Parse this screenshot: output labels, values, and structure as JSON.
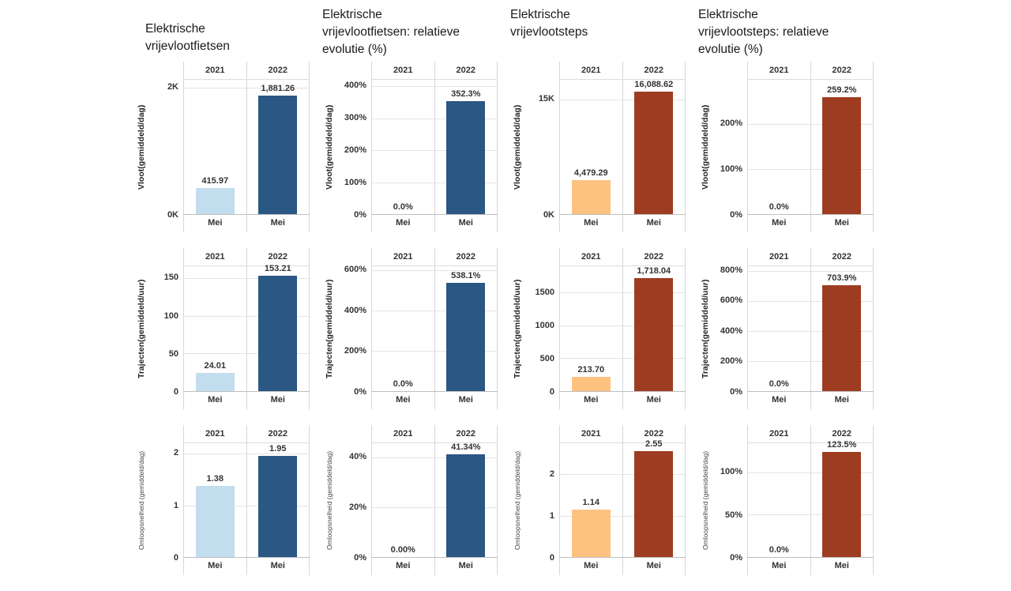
{
  "page": {
    "background": "#ffffff"
  },
  "palette": {
    "bike_2021": "#c1ddee",
    "bike_2022": "#2a5783",
    "step_2021": "#fdc280",
    "step_2022": "#9d3c21",
    "grid_line": "#e4e4e4",
    "pane_border": "#d7d7d7",
    "text": "#333333"
  },
  "columns": [
    {
      "title": "Elektrische vrijevlootfietsen"
    },
    {
      "title": "Elektrische vrijevlootfietsen: relatieve evolutie (%)"
    },
    {
      "title": "Elektrische vrijevlootsteps"
    },
    {
      "title": "Elektrische vrijevlootsteps: relatieve evolutie (%)"
    }
  ],
  "chart_data": [
    {
      "id": "fietsen-vloot",
      "type": "bar",
      "row": 1,
      "col": 1,
      "title": "Elektrische vrijevlootfietsen",
      "ylabel": "Vloot(gemiddeld/dag)",
      "ylabel_style": "bold",
      "column_headers": [
        "2021",
        "2022"
      ],
      "categories": [
        "Mei",
        "Mei"
      ],
      "values": [
        415.97,
        1881.26
      ],
      "value_labels": [
        "415.97",
        "1,881.26"
      ],
      "colors": [
        "#c1ddee",
        "#2a5783"
      ],
      "yticks": [
        {
          "value": 0,
          "label": "0K"
        },
        {
          "value": 2000,
          "label": "2K"
        }
      ],
      "ymax": 2130,
      "grid": true,
      "legend": "none"
    },
    {
      "id": "fietsen-vloot-relatief",
      "type": "bar",
      "row": 1,
      "col": 2,
      "title": "Elektrische vrijevlootfietsen: relatieve evolutie (%)",
      "ylabel": "Vloot(gemiddeld/dag)",
      "ylabel_style": "bold",
      "column_headers": [
        "2021",
        "2022"
      ],
      "categories": [
        "Mei",
        "Mei"
      ],
      "values": [
        0,
        352.3
      ],
      "value_labels": [
        "0.0%",
        "352.3%"
      ],
      "colors": [
        "#2a5783",
        "#2a5783"
      ],
      "yticks": [
        {
          "value": 0,
          "label": "0%"
        },
        {
          "value": 100,
          "label": "100%"
        },
        {
          "value": 200,
          "label": "200%"
        },
        {
          "value": 300,
          "label": "300%"
        },
        {
          "value": 400,
          "label": "400%"
        }
      ],
      "ymax": 420,
      "grid": true,
      "legend": "none"
    },
    {
      "id": "steps-vloot",
      "type": "bar",
      "row": 1,
      "col": 3,
      "title": "Elektrische vrijevlootsteps",
      "ylabel": "Vloot(gemiddeld/dag)",
      "ylabel_style": "bold",
      "column_headers": [
        "2021",
        "2022"
      ],
      "categories": [
        "Mei",
        "Mei"
      ],
      "values": [
        4479.29,
        16088.62
      ],
      "value_labels": [
        "4,479.29",
        "16,088.62"
      ],
      "colors": [
        "#fdc280",
        "#9d3c21"
      ],
      "yticks": [
        {
          "value": 0,
          "label": "0K"
        },
        {
          "value": 15000,
          "label": "15K"
        }
      ],
      "ymax": 17600,
      "grid": true,
      "legend": "none"
    },
    {
      "id": "steps-vloot-relatief",
      "type": "bar",
      "row": 1,
      "col": 4,
      "title": "Elektrische vrijevlootsteps: relatieve evolutie (%)",
      "ylabel": "Vloot(gemiddeld/dag)",
      "ylabel_style": "bold",
      "column_headers": [
        "2021",
        "2022"
      ],
      "categories": [
        "Mei",
        "Mei"
      ],
      "values": [
        0,
        259.2
      ],
      "value_labels": [
        "0.0%",
        "259.2%"
      ],
      "colors": [
        "#9d3c21",
        "#9d3c21"
      ],
      "yticks": [
        {
          "value": 0,
          "label": "0%"
        },
        {
          "value": 100,
          "label": "100%"
        },
        {
          "value": 200,
          "label": "200%"
        }
      ],
      "ymax": 297,
      "grid": true,
      "legend": "none"
    },
    {
      "id": "fietsen-trajecten",
      "type": "bar",
      "row": 2,
      "col": 1,
      "title": "Elektrische vrijevlootfietsen",
      "ylabel": "Trajecten(gemiddeld/uur)",
      "ylabel_style": "bold",
      "column_headers": [
        "2021",
        "2022"
      ],
      "categories": [
        "Mei",
        "Mei"
      ],
      "values": [
        24.01,
        153.21
      ],
      "value_labels": [
        "24.01",
        "153.21"
      ],
      "colors": [
        "#c1ddee",
        "#2a5783"
      ],
      "yticks": [
        {
          "value": 0,
          "label": "0"
        },
        {
          "value": 50,
          "label": "50"
        },
        {
          "value": 100,
          "label": "100"
        },
        {
          "value": 150,
          "label": "150"
        }
      ],
      "ymax": 166,
      "grid": true,
      "legend": "none"
    },
    {
      "id": "fietsen-trajecten-relatief",
      "type": "bar",
      "row": 2,
      "col": 2,
      "title": "Elektrische vrijevlootfietsen: relatieve evolutie (%)",
      "ylabel": "Trajecten(gemiddeld/uur)",
      "ylabel_style": "bold",
      "column_headers": [
        "2021",
        "2022"
      ],
      "categories": [
        "Mei",
        "Mei"
      ],
      "values": [
        0,
        538.1
      ],
      "value_labels": [
        "0.0%",
        "538.1%"
      ],
      "colors": [
        "#2a5783",
        "#2a5783"
      ],
      "yticks": [
        {
          "value": 0,
          "label": "0%"
        },
        {
          "value": 200,
          "label": "200%"
        },
        {
          "value": 400,
          "label": "400%"
        },
        {
          "value": 600,
          "label": "600%"
        }
      ],
      "ymax": 620,
      "grid": true,
      "legend": "none"
    },
    {
      "id": "steps-trajecten",
      "type": "bar",
      "row": 2,
      "col": 3,
      "title": "Elektrische vrijevlootsteps",
      "ylabel": "Trajecten(gemiddeld/uur)",
      "ylabel_style": "bold",
      "column_headers": [
        "2021",
        "2022"
      ],
      "categories": [
        "Mei",
        "Mei"
      ],
      "values": [
        213.7,
        1718.04
      ],
      "value_labels": [
        "213.70",
        "1,718.04"
      ],
      "colors": [
        "#fdc280",
        "#9d3c21"
      ],
      "yticks": [
        {
          "value": 0,
          "label": "0"
        },
        {
          "value": 500,
          "label": "500"
        },
        {
          "value": 1000,
          "label": "1000"
        },
        {
          "value": 1500,
          "label": "1500"
        }
      ],
      "ymax": 1900,
      "grid": true,
      "legend": "none"
    },
    {
      "id": "steps-trajecten-relatief",
      "type": "bar",
      "row": 2,
      "col": 4,
      "title": "Elektrische vrijevlootsteps: relatieve evolutie (%)",
      "ylabel": "Trajecten(gemiddeld/uur)",
      "ylabel_style": "bold",
      "column_headers": [
        "2021",
        "2022"
      ],
      "categories": [
        "Mei",
        "Mei"
      ],
      "values": [
        0,
        703.9
      ],
      "value_labels": [
        "0.0%",
        "703.9%"
      ],
      "colors": [
        "#9d3c21",
        "#9d3c21"
      ],
      "yticks": [
        {
          "value": 0,
          "label": "0%"
        },
        {
          "value": 200,
          "label": "200%"
        },
        {
          "value": 400,
          "label": "400%"
        },
        {
          "value": 600,
          "label": "600%"
        },
        {
          "value": 800,
          "label": "800%"
        }
      ],
      "ymax": 830,
      "grid": true,
      "legend": "none"
    },
    {
      "id": "fietsen-omloopsnelheid",
      "type": "bar",
      "row": 3,
      "col": 1,
      "title": "Elektrische vrijevlootfietsen",
      "ylabel": "Omloopsnelheid (gemiddeld/dag)",
      "ylabel_style": "regular",
      "column_headers": [
        "2021",
        "2022"
      ],
      "categories": [
        "Mei",
        "Mei"
      ],
      "values": [
        1.38,
        1.95
      ],
      "value_labels": [
        "1.38",
        "1.95"
      ],
      "colors": [
        "#c1ddee",
        "#2a5783"
      ],
      "yticks": [
        {
          "value": 0,
          "label": "0"
        },
        {
          "value": 1,
          "label": "1"
        },
        {
          "value": 2,
          "label": "2"
        }
      ],
      "ymax": 2.2,
      "grid": true,
      "legend": "none"
    },
    {
      "id": "fietsen-omloopsnelheid-relatief",
      "type": "bar",
      "row": 3,
      "col": 2,
      "title": "Elektrische vrijevlootfietsen: relatieve evolutie (%)",
      "ylabel": "Omloopsnelheid (gemiddeld/dag)",
      "ylabel_style": "regular",
      "column_headers": [
        "2021",
        "2022"
      ],
      "categories": [
        "Mei",
        "Mei"
      ],
      "values": [
        0,
        41.34
      ],
      "value_labels": [
        "0.00%",
        "41.34%"
      ],
      "colors": [
        "#2a5783",
        "#2a5783"
      ],
      "yticks": [
        {
          "value": 0,
          "label": "0%"
        },
        {
          "value": 20,
          "label": "20%"
        },
        {
          "value": 40,
          "label": "40%"
        }
      ],
      "ymax": 45.8,
      "grid": true,
      "legend": "none"
    },
    {
      "id": "steps-omloopsnelheid",
      "type": "bar",
      "row": 3,
      "col": 3,
      "title": "Elektrische vrijevlootsteps",
      "ylabel": "Omloopsnelheid (gemiddeld/dag)",
      "ylabel_style": "regular",
      "column_headers": [
        "2021",
        "2022"
      ],
      "categories": [
        "Mei",
        "Mei"
      ],
      "values": [
        1.14,
        2.55
      ],
      "value_labels": [
        "1.14",
        "2.55"
      ],
      "colors": [
        "#fdc280",
        "#9d3c21"
      ],
      "yticks": [
        {
          "value": 0,
          "label": "0"
        },
        {
          "value": 1,
          "label": "1"
        },
        {
          "value": 2,
          "label": "2"
        }
      ],
      "ymax": 2.75,
      "grid": true,
      "legend": "none"
    },
    {
      "id": "steps-omloopsnelheid-relatief",
      "type": "bar",
      "row": 3,
      "col": 4,
      "title": "Elektrische vrijevlootsteps: relatieve evolutie (%)",
      "ylabel": "Omloopsnelheid (gemiddeld/dag)",
      "ylabel_style": "regular",
      "column_headers": [
        "2021",
        "2022"
      ],
      "categories": [
        "Mei",
        "Mei"
      ],
      "values": [
        0,
        123.5
      ],
      "value_labels": [
        "0.0%",
        "123.5%"
      ],
      "colors": [
        "#9d3c21",
        "#9d3c21"
      ],
      "yticks": [
        {
          "value": 0,
          "label": "0%"
        },
        {
          "value": 50,
          "label": "50%"
        },
        {
          "value": 100,
          "label": "100%"
        }
      ],
      "ymax": 134,
      "grid": true,
      "legend": "none"
    }
  ]
}
